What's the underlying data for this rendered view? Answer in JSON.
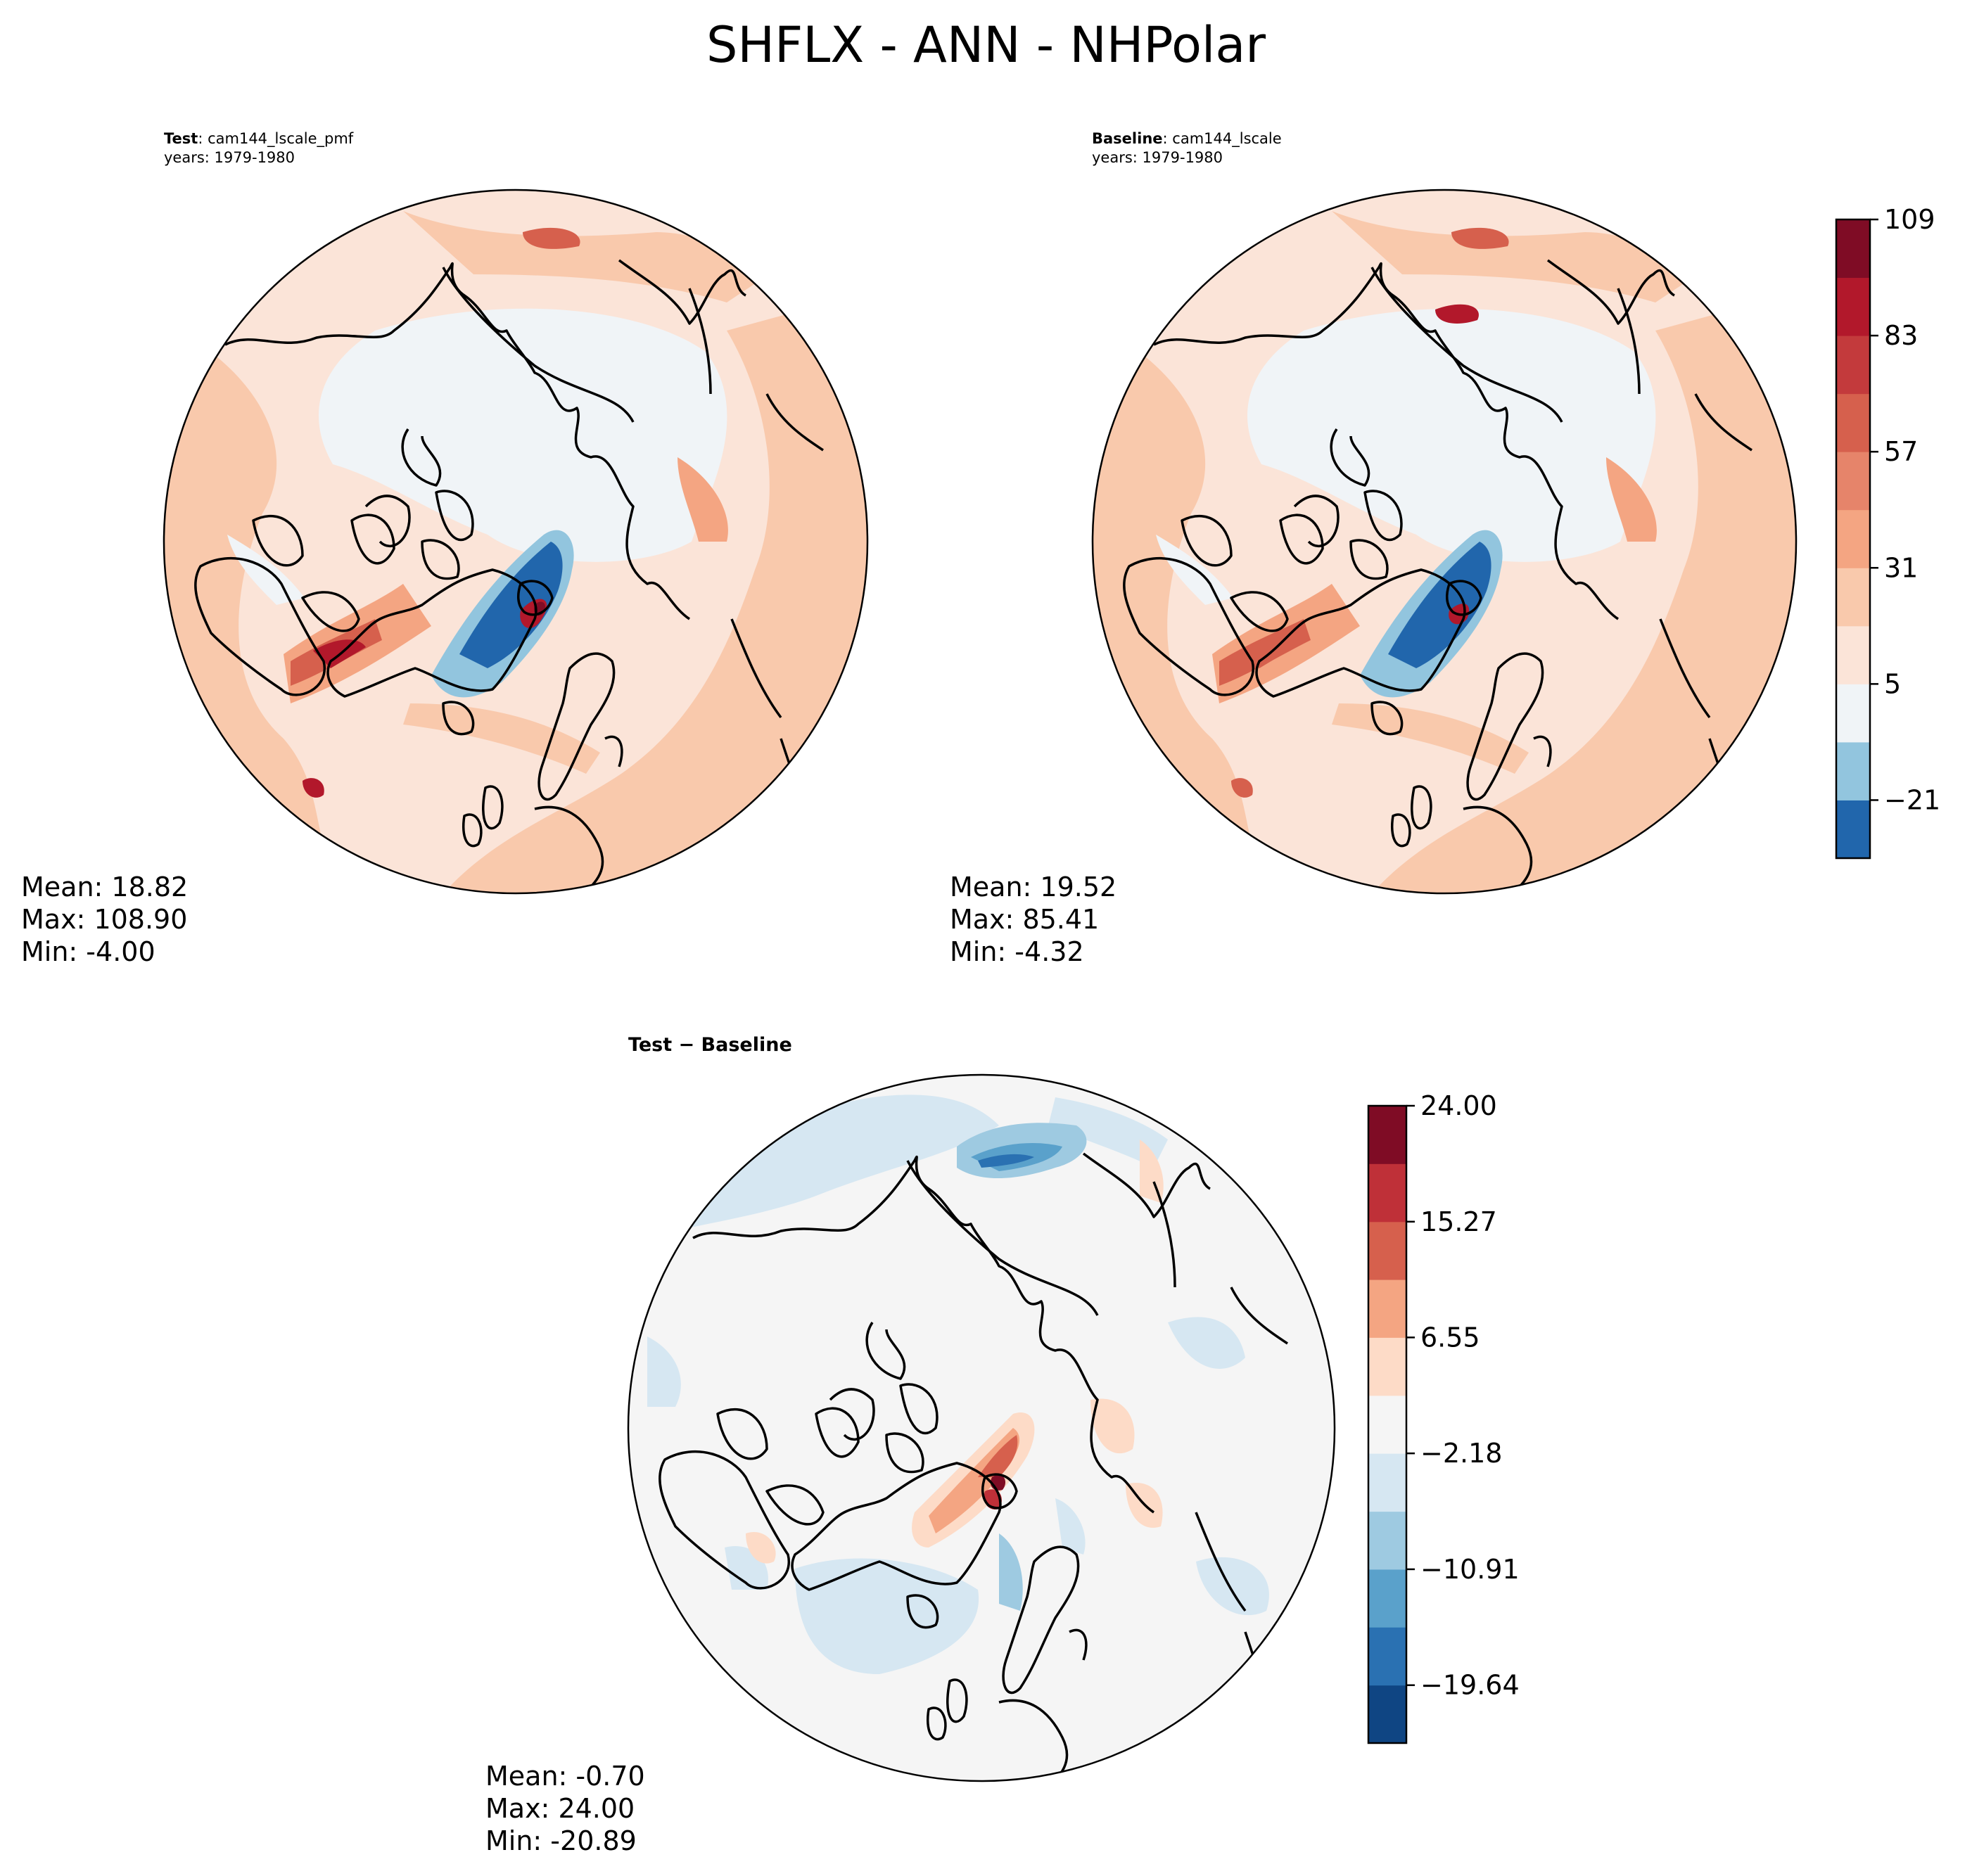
{
  "figure": {
    "title": "SHFLX - ANN - NHPolar"
  },
  "chart_data": [
    {
      "type": "heatmap",
      "projection": "north-polar-stereographic",
      "panel_label": "Test",
      "case_name": "cam144_lscale_pmf",
      "years_label": "years: 1979-1980",
      "stats": {
        "mean": "Mean: 18.82",
        "max": "Max: 108.90",
        "min": "Min: -4.00"
      },
      "colormap": "RdBu_r"
    },
    {
      "type": "heatmap",
      "projection": "north-polar-stereographic",
      "panel_label": "Baseline",
      "case_name": "cam144_lscale",
      "years_label": "years: 1979-1980",
      "stats": {
        "mean": "Mean: 19.52",
        "max": "Max: 85.41",
        "min": "Min: -4.32"
      },
      "colormap": "RdBu_r",
      "colorbar": {
        "levels": [
          -34,
          -21,
          -8,
          5,
          18,
          31,
          44,
          57,
          70,
          83,
          96,
          109
        ],
        "tick_labels": [
          "−21",
          "5",
          "31",
          "57",
          "83",
          "109"
        ],
        "colors": [
          "#2166ac",
          "#92c5de",
          "#f0f4f7",
          "#fbe4d8",
          "#f9c9ac",
          "#f4a582",
          "#e6846a",
          "#d6604d",
          "#c33a3c",
          "#b2182b",
          "#7f0c25"
        ]
      }
    },
    {
      "type": "heatmap",
      "projection": "north-polar-stereographic",
      "panel_label": "Test − Baseline",
      "stats": {
        "mean": "Mean: -0.70",
        "max": "Max: 24.00",
        "min": "Min: -20.89"
      },
      "colormap": "RdBu_r",
      "colorbar": {
        "levels": [
          -24.0,
          -19.64,
          -15.27,
          -10.91,
          -6.55,
          -2.18,
          2.18,
          6.55,
          10.91,
          15.27,
          19.64,
          24.0
        ],
        "tick_labels": [
          "24.00",
          "15.27",
          "6.55",
          "−2.18",
          "−10.91",
          "−19.64"
        ],
        "colors": [
          "#0f4583",
          "#2a71b2",
          "#5aa1cb",
          "#9ecae1",
          "#d6e7f2",
          "#f5f5f5",
          "#fddbc7",
          "#f4a582",
          "#d6604d",
          "#bf3038",
          "#7f0c25"
        ]
      }
    }
  ],
  "colors": {
    "land_outline": "#000000",
    "frame": "#000000"
  }
}
